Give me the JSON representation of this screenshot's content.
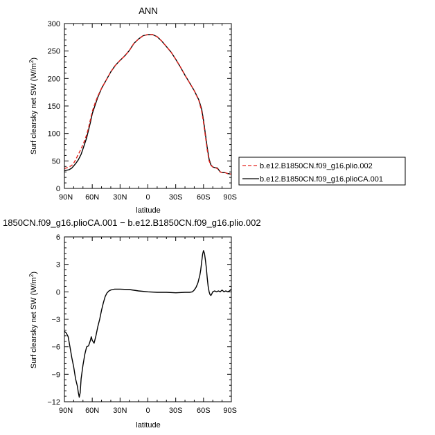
{
  "chart_data": [
    {
      "type": "line",
      "title": "ANN",
      "xlabel": "latitude",
      "ylabel": "Surf clearsky net SW (W/m²)",
      "ylabel_main": "Surf clearsky net SW (W/m",
      "ylabel_sup": "2",
      "ylabel_end": ")",
      "xlim": [
        90,
        -90
      ],
      "ylim": [
        0,
        300
      ],
      "x_ticks": [
        90,
        60,
        30,
        0,
        -30,
        -60,
        -90
      ],
      "x_tick_labels": [
        "90N",
        "60N",
        "30N",
        "0",
        "30S",
        "60S",
        "90S"
      ],
      "y_ticks": [
        0,
        50,
        100,
        150,
        200,
        250,
        300
      ],
      "y_tick_labels": [
        "0",
        "50",
        "100",
        "150",
        "200",
        "250",
        "300"
      ],
      "legend_position": "right",
      "series": [
        {
          "name": "b.e12.B1850CN.f09_g16.plio.002",
          "color": "#e3201b",
          "dash": "dashed",
          "x": [
            90,
            85,
            82,
            80,
            78,
            75,
            72,
            70,
            68,
            66,
            64,
            62,
            60,
            57,
            54,
            50,
            45,
            40,
            35,
            30,
            25,
            20,
            15,
            10,
            5,
            0,
            -5,
            -10,
            -15,
            -20,
            -25,
            -30,
            -35,
            -40,
            -45,
            -50,
            -55,
            -58,
            -60,
            -62,
            -64,
            -66,
            -68,
            -70,
            -72,
            -75,
            -78,
            -80,
            -83,
            -86,
            -90
          ],
          "y": [
            36,
            39,
            42,
            46,
            52,
            62,
            72,
            80,
            88,
            98,
            110,
            125,
            140,
            155,
            168,
            182,
            197,
            212,
            224,
            233,
            241,
            251,
            264,
            272,
            278,
            280,
            280,
            276,
            268,
            258,
            248,
            235,
            221,
            206,
            192,
            178,
            160,
            140,
            120,
            95,
            70,
            50,
            42,
            39,
            38,
            36,
            30,
            29,
            29,
            27,
            26
          ]
        },
        {
          "name": "b.e12.B1850CN.f09_g16.plioCA.001",
          "color": "#000000",
          "dash": "solid",
          "x": [
            90,
            85,
            82,
            80,
            78,
            75,
            72,
            70,
            68,
            66,
            64,
            62,
            60,
            57,
            54,
            50,
            45,
            40,
            35,
            30,
            25,
            20,
            15,
            10,
            5,
            0,
            -5,
            -10,
            -15,
            -20,
            -25,
            -30,
            -35,
            -40,
            -45,
            -50,
            -55,
            -58,
            -60,
            -62,
            -64,
            -66,
            -68,
            -70,
            -72,
            -75,
            -78,
            -80,
            -83,
            -86,
            -90
          ],
          "y": [
            32,
            34,
            37,
            41,
            45,
            52,
            62,
            72,
            82,
            92,
            106,
            120,
            136,
            151,
            166,
            182,
            197,
            212,
            224,
            233,
            241,
            251,
            264,
            272,
            278,
            280,
            280,
            276,
            268,
            258,
            248,
            235,
            221,
            206,
            192,
            178,
            161,
            144,
            124,
            99,
            74,
            53,
            43,
            39,
            38,
            37,
            30,
            29,
            29,
            27,
            26
          ]
        }
      ]
    },
    {
      "type": "line",
      "title": "1850CN.f09_g16.plioCA.001 − b.e12.B1850CN.f09_g16.plio.002",
      "xlabel": "latitude",
      "ylabel": "Surf clearsky net SW (W/m²)",
      "ylabel_main": "Surf clearsky net SW (W/m",
      "ylabel_sup": "2",
      "ylabel_end": ")",
      "xlim": [
        90,
        -90
      ],
      "ylim": [
        -12,
        6
      ],
      "x_ticks": [
        90,
        60,
        30,
        0,
        -30,
        -60,
        -90
      ],
      "x_tick_labels": [
        "90N",
        "60N",
        "30N",
        "0",
        "30S",
        "60S",
        "90S"
      ],
      "y_ticks": [
        -12,
        -9,
        -6,
        -3,
        0,
        3,
        6
      ],
      "y_tick_labels": [
        "−12",
        "−9",
        "−6",
        "−3",
        "0",
        "3",
        "6"
      ],
      "series": [
        {
          "color": "#000000",
          "dash": "solid",
          "x": [
            90,
            88,
            86,
            84,
            82,
            80,
            78,
            76,
            75,
            74,
            73,
            72,
            70,
            68,
            66,
            64,
            63,
            62,
            61,
            60,
            58,
            56,
            54,
            52,
            50,
            48,
            46,
            44,
            42,
            40,
            38,
            36,
            30,
            20,
            10,
            0,
            -10,
            -20,
            -30,
            -40,
            -45,
            -48,
            -50,
            -52,
            -54,
            -55,
            -56,
            -57,
            -58,
            -59,
            -60,
            -61,
            -62,
            -63,
            -64,
            -65,
            -66,
            -67,
            -68,
            -69,
            -70,
            -72,
            -74,
            -76,
            -78,
            -80,
            -82,
            -84,
            -86,
            -88,
            -90
          ],
          "y": [
            -4.3,
            -4.5,
            -4.9,
            -6.0,
            -7.2,
            -8.2,
            -9.5,
            -10.3,
            -11.0,
            -11.5,
            -11.0,
            -9.5,
            -8.0,
            -6.8,
            -6.0,
            -5.9,
            -5.6,
            -5.3,
            -4.9,
            -5.3,
            -5.6,
            -4.8,
            -3.8,
            -3.0,
            -2.0,
            -1.2,
            -0.5,
            -0.1,
            0.1,
            0.2,
            0.25,
            0.3,
            0.3,
            0.25,
            0.1,
            0.0,
            -0.05,
            -0.05,
            -0.1,
            -0.05,
            -0.05,
            0.0,
            0.2,
            0.5,
            1.0,
            1.4,
            1.8,
            2.4,
            3.3,
            4.1,
            4.5,
            4.2,
            3.5,
            2.6,
            1.5,
            0.6,
            0.0,
            -0.3,
            -0.4,
            -0.2,
            0.0,
            0.1,
            0.0,
            0.1,
            0.0,
            0.2,
            0.0,
            0.1,
            0.0,
            0.1,
            0.3
          ]
        }
      ]
    }
  ]
}
